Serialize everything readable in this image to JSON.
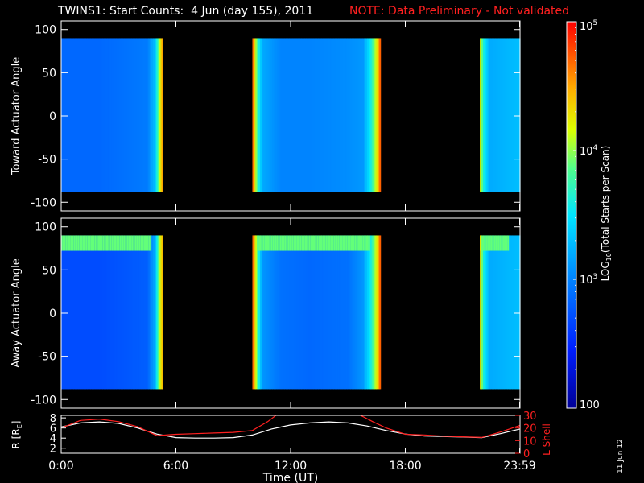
{
  "header": {
    "title": "TWINS1: Start Counts:  4 Jun (day 155), 2011",
    "note": "NOTE: Data Preliminary - Not validated"
  },
  "stamp": "11 Jun 12",
  "colors": {
    "background": "#000000",
    "frame": "#ffffff",
    "note": "#ff2020",
    "l_shell": "#ff2020",
    "radius": "#ffffff"
  },
  "chart_data": [
    {
      "type": "heatmap",
      "name": "toward",
      "ylabel": "Toward Actuator Angle",
      "ylim": [
        -110,
        110
      ],
      "xlim": [
        0,
        24
      ],
      "yticks": [
        100,
        50,
        0,
        -50,
        -100
      ],
      "angle_range": [
        -88,
        90
      ],
      "data_intervals_ut": [
        [
          0,
          5.3
        ],
        [
          10.0,
          16.7
        ],
        [
          21.9,
          24
        ]
      ],
      "level_log10_by_time": [
        {
          "t": 0.0,
          "v": 2.85
        },
        {
          "t": 2.0,
          "v": 2.85
        },
        {
          "t": 4.5,
          "v": 2.95
        },
        {
          "t": 4.9,
          "v": 3.3
        },
        {
          "t": 5.1,
          "v": 3.9
        },
        {
          "t": 5.3,
          "v": 4.6
        },
        {
          "t": 10.0,
          "v": 4.8
        },
        {
          "t": 10.2,
          "v": 4.0
        },
        {
          "t": 10.5,
          "v": 3.2
        },
        {
          "t": 11.5,
          "v": 3.0
        },
        {
          "t": 13.0,
          "v": 3.0
        },
        {
          "t": 15.0,
          "v": 3.05
        },
        {
          "t": 15.8,
          "v": 3.1
        },
        {
          "t": 16.2,
          "v": 3.6
        },
        {
          "t": 16.5,
          "v": 4.2
        },
        {
          "t": 16.7,
          "v": 4.8
        },
        {
          "t": 21.9,
          "v": 4.3
        },
        {
          "t": 22.1,
          "v": 3.6
        },
        {
          "t": 22.4,
          "v": 3.2
        },
        {
          "t": 24.0,
          "v": 3.3
        }
      ]
    },
    {
      "type": "heatmap",
      "name": "away",
      "ylabel": "Away Actuator Angle",
      "ylim": [
        -110,
        110
      ],
      "xlim": [
        0,
        24
      ],
      "yticks": [
        100,
        50,
        0,
        -50,
        -100
      ],
      "angle_range": [
        -88,
        90
      ],
      "data_intervals_ut": [
        [
          0,
          5.3
        ],
        [
          10.0,
          16.7
        ],
        [
          21.9,
          24
        ]
      ],
      "level_log10_by_time": [
        {
          "t": 0.0,
          "v": 2.7
        },
        {
          "t": 2.0,
          "v": 2.7
        },
        {
          "t": 4.5,
          "v": 2.8
        },
        {
          "t": 4.9,
          "v": 3.2
        },
        {
          "t": 5.1,
          "v": 3.9
        },
        {
          "t": 5.3,
          "v": 4.5
        },
        {
          "t": 10.0,
          "v": 4.8
        },
        {
          "t": 10.2,
          "v": 4.1
        },
        {
          "t": 10.5,
          "v": 3.1
        },
        {
          "t": 11.5,
          "v": 2.9
        },
        {
          "t": 13.0,
          "v": 2.85
        },
        {
          "t": 15.0,
          "v": 2.9
        },
        {
          "t": 15.8,
          "v": 3.1
        },
        {
          "t": 16.2,
          "v": 3.6
        },
        {
          "t": 16.5,
          "v": 4.2
        },
        {
          "t": 16.7,
          "v": 4.8
        },
        {
          "t": 21.9,
          "v": 4.4
        },
        {
          "t": 22.1,
          "v": 3.6
        },
        {
          "t": 22.4,
          "v": 3.2
        },
        {
          "t": 24.0,
          "v": 3.3
        }
      ],
      "top_band_log10": 3.9
    },
    {
      "type": "line",
      "name": "ephemeris",
      "xlabel": "Time (UT)",
      "xlim": [
        0,
        24
      ],
      "xticks": [
        {
          "t": 0,
          "label": "0:00"
        },
        {
          "t": 6,
          "label": "6:00"
        },
        {
          "t": 12,
          "label": "12:00"
        },
        {
          "t": 18,
          "label": "18:00"
        },
        {
          "t": 23.98,
          "label": "23:59"
        }
      ],
      "ylabel_left": "R [R",
      "ylabel_left_sub": "E",
      "ylabel_left_end": "]",
      "ylim_left": [
        1,
        8.5
      ],
      "yticks_left": [
        2,
        4,
        6,
        8
      ],
      "ylabel_right": "L Shell",
      "ylim_right": [
        0,
        30
      ],
      "yticks_right": [
        0,
        10,
        20,
        30
      ],
      "series": [
        {
          "axis": "left",
          "color": "#ffffff",
          "x": [
            0,
            1,
            2,
            3,
            4,
            5,
            6,
            7,
            8,
            9,
            10,
            11,
            12,
            13,
            14,
            15,
            16,
            17,
            18,
            19,
            20,
            21,
            22,
            23,
            24
          ],
          "y": [
            6.2,
            7.0,
            7.2,
            6.9,
            6.0,
            4.8,
            4.1,
            4.0,
            4.0,
            4.1,
            4.6,
            5.8,
            6.6,
            7.0,
            7.2,
            7.0,
            6.4,
            5.5,
            4.8,
            4.4,
            4.3,
            4.2,
            4.1,
            4.9,
            5.8
          ]
        },
        {
          "axis": "right",
          "color": "#ff2020",
          "x": [
            0,
            1,
            2,
            3,
            4,
            5,
            6,
            7,
            8,
            9,
            10,
            10.8,
            11.4,
            15.4,
            16.3,
            17,
            18,
            19,
            20,
            21,
            22,
            23,
            24
          ],
          "y": [
            20,
            26,
            27,
            25,
            21,
            14,
            15,
            15.5,
            16,
            16.5,
            18,
            25,
            32,
            32,
            25,
            20,
            15,
            14.5,
            13.5,
            13,
            12.5,
            17,
            22
          ]
        }
      ]
    }
  ],
  "colorbar": {
    "label": "LOG",
    "label_sub": "10",
    "label_end": "(Total Starts per Scan)",
    "range_log10": [
      2,
      5
    ],
    "ticks": [
      {
        "v": 5,
        "label": "10",
        "sup": "5"
      },
      {
        "v": 4,
        "label": "10",
        "sup": "4"
      },
      {
        "v": 3,
        "label": "10",
        "sup": "3"
      },
      {
        "v": 2,
        "label": "100",
        "sup": ""
      }
    ]
  }
}
